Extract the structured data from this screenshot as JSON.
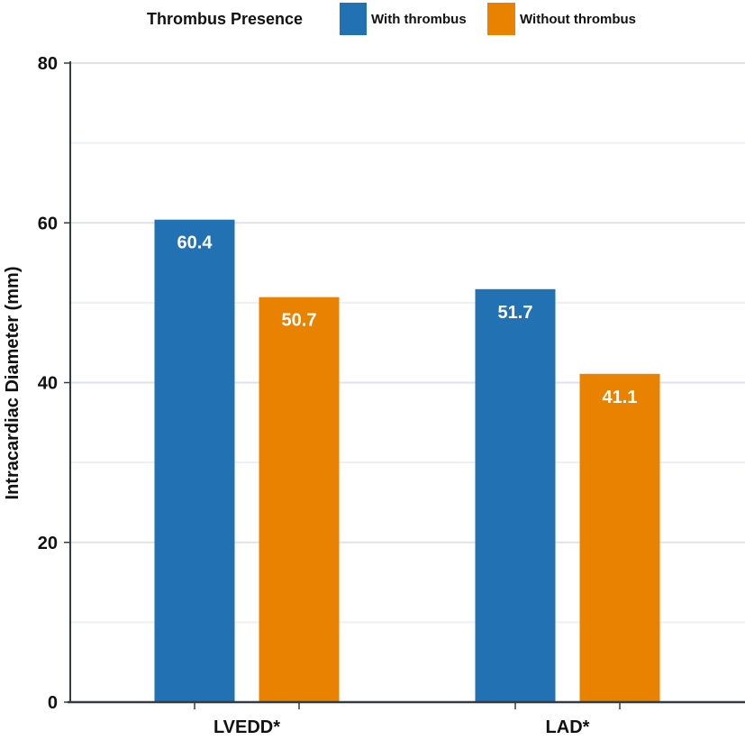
{
  "chart_data": {
    "type": "bar",
    "title": "",
    "xlabel": "",
    "ylabel": "Intracardiac Diameter (mm)",
    "ylim": [
      0,
      80
    ],
    "yticks": [
      0,
      20,
      40,
      60,
      80
    ],
    "grid": true,
    "legend_title": "Thrombus Presence",
    "legend_position": "top",
    "categories": [
      "LVEDD*",
      "LAD*"
    ],
    "series": [
      {
        "name": "With thrombus",
        "color": "#2271b3",
        "values": [
          60.4,
          51.7
        ]
      },
      {
        "name": "Without thrombus",
        "color": "#e88200",
        "values": [
          50.7,
          41.1
        ]
      }
    ]
  }
}
